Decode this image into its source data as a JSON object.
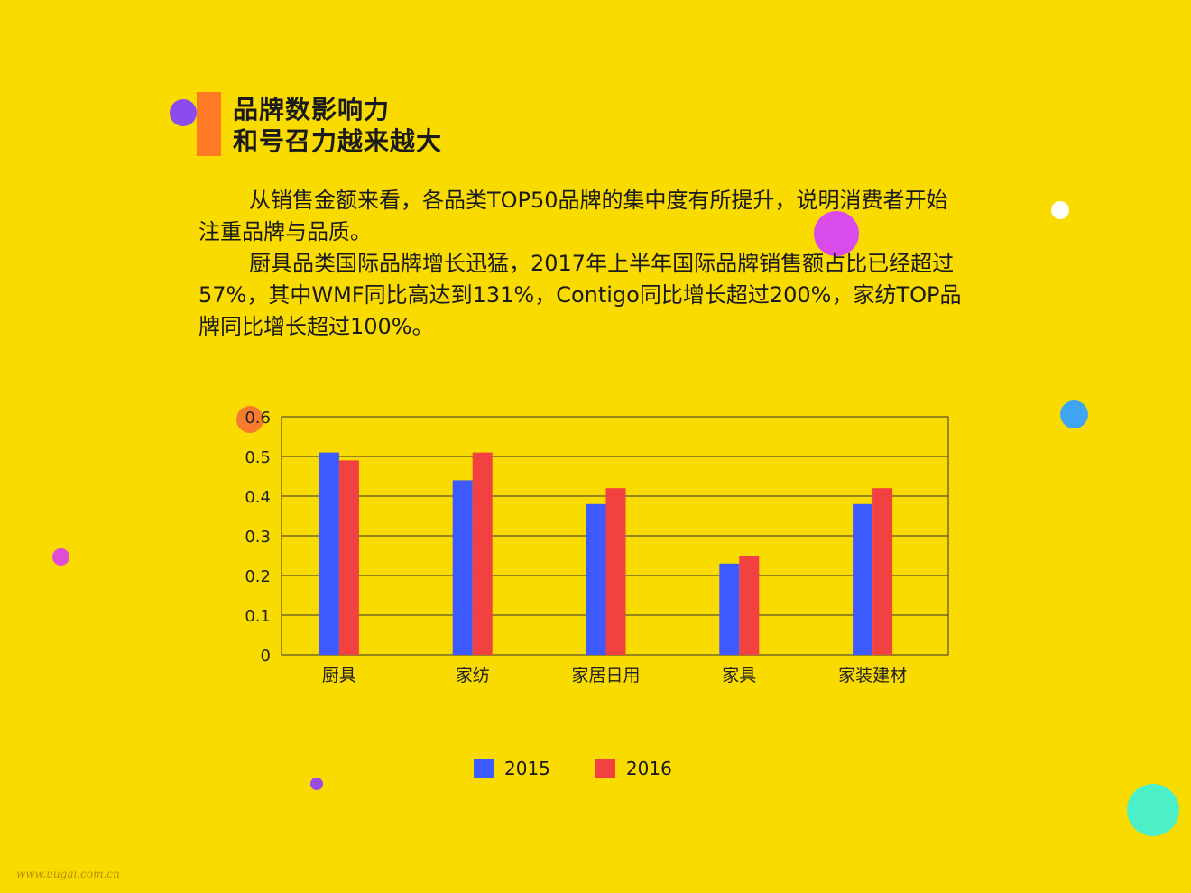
{
  "title": {
    "line1": "品牌数影响力",
    "line2": "和号召力越来越大"
  },
  "body": {
    "paragraph1": "从销售金额来看，各品类TOP50品牌的集中度有所提升，说明消费者开始注重品牌与品质。",
    "paragraph2": "厨具品类国际品牌增长迅猛，2017年上半年国际品牌销售额占比已经超过57%，其中WMF同比高达到131%，Contigo同比增长超过200%，家纺TOP品牌同比增长超过100%。"
  },
  "colors": {
    "background": "#FADB00",
    "accent_bar": "#FF7A24",
    "series_2015": "#3D5AFE",
    "series_2016": "#F24141"
  },
  "chart_data": {
    "type": "bar",
    "categories": [
      "厨具",
      "家纺",
      "家居日用",
      "家具",
      "家装建材"
    ],
    "series": [
      {
        "name": "2015",
        "values": [
          0.51,
          0.44,
          0.38,
          0.23,
          0.38
        ],
        "color": "#3D5AFE"
      },
      {
        "name": "2016",
        "values": [
          0.49,
          0.51,
          0.42,
          0.25,
          0.42
        ],
        "color": "#F24141"
      }
    ],
    "ylim": [
      0,
      0.6
    ],
    "yticks": [
      "0",
      "0.1",
      "0.2",
      "0.3",
      "0.4",
      "0.5",
      "0.6"
    ],
    "grid": true,
    "legend_position": "bottom"
  },
  "legend": {
    "item1": "2015",
    "item2": "2016"
  },
  "watermark": "www.uugai.com.cn"
}
